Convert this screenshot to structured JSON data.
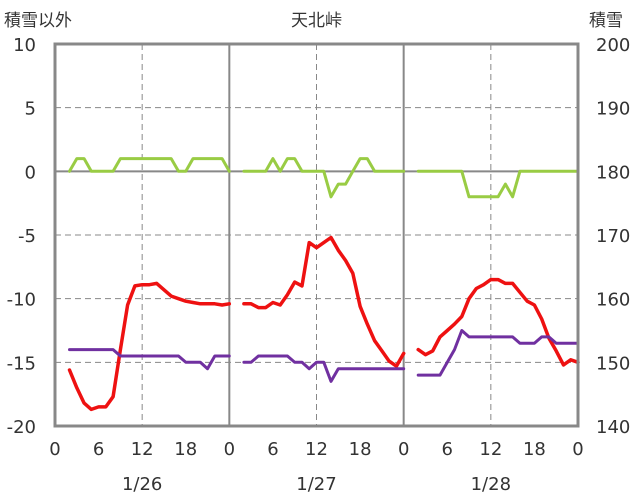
{
  "chart_data": {
    "type": "line",
    "title": "天北峠",
    "left_axis_label": "積雪以外",
    "right_axis_label": "積雪",
    "y_left": {
      "min": -20,
      "max": 10,
      "ticks": [
        10,
        5,
        0,
        -5,
        -10,
        -15,
        -20
      ]
    },
    "y_right": {
      "min": 140,
      "max": 200,
      "ticks": [
        200,
        190,
        180,
        170,
        160,
        150,
        140
      ]
    },
    "x_ticks": [
      "0",
      "6",
      "12",
      "18",
      "0",
      "6",
      "12",
      "18",
      "0",
      "6",
      "12",
      "18",
      "0"
    ],
    "days": [
      "1/26",
      "1/27",
      "1/28"
    ],
    "colors": {
      "red": "#ee1111",
      "green": "#99cc44",
      "purple": "#7030a0",
      "grid": "#888888",
      "zero": "#888888"
    },
    "series": [
      {
        "key": "red",
        "axis": "left",
        "segments": [
          {
            "x": [
              2,
              3,
              4,
              5,
              6,
              7,
              8,
              9,
              10,
              11,
              12,
              13,
              14,
              15,
              16,
              17,
              18,
              19,
              20,
              21,
              22,
              23,
              24
            ],
            "y": [
              -15.6,
              -17,
              -18.2,
              -18.7,
              -18.5,
              -18.5,
              -17.7,
              -14,
              -10.5,
              -9,
              -8.9,
              -8.9,
              -8.8,
              -9.3,
              -9.8,
              -10,
              -10.2,
              -10.3,
              -10.4,
              -10.4,
              -10.4,
              -10.5,
              -10.4
            ]
          },
          {
            "x": [
              26,
              27,
              28,
              29,
              30,
              31,
              32,
              33,
              34,
              35,
              36,
              37,
              38,
              39,
              40,
              41,
              42,
              43,
              44,
              45,
              46,
              47,
              48
            ],
            "y": [
              -10.4,
              -10.4,
              -10.7,
              -10.7,
              -10.3,
              -10.5,
              -9.7,
              -8.7,
              -9,
              -5.6,
              -6,
              -5.6,
              -5.2,
              -6.2,
              -7,
              -8,
              -10.6,
              -12,
              -13.3,
              -14.1,
              -14.9,
              -15.3,
              -14.3
            ]
          },
          {
            "x": [
              50,
              51,
              52,
              53,
              54,
              55,
              56,
              57,
              58,
              59,
              60,
              61,
              62,
              63,
              64,
              65,
              66,
              67,
              68,
              69,
              70,
              71,
              72
            ],
            "y": [
              -14,
              -14.4,
              -14.1,
              -13,
              -12.5,
              -12,
              -11.4,
              -10,
              -9.2,
              -8.9,
              -8.5,
              -8.5,
              -8.8,
              -8.8,
              -9.5,
              -10.2,
              -10.5,
              -11.6,
              -13.1,
              -14.1,
              -15.2,
              -14.8,
              -15
            ]
          }
        ]
      },
      {
        "key": "green",
        "axis": "left",
        "segments": [
          {
            "x": [
              2,
              3,
              4,
              5,
              6,
              7,
              8,
              9,
              10,
              11,
              12,
              13,
              14,
              15,
              16,
              17,
              18,
              19,
              20,
              21,
              22,
              23,
              24
            ],
            "y": [
              0,
              1,
              1,
              0,
              0,
              0,
              0,
              1,
              1,
              1,
              1,
              1,
              1,
              1,
              1,
              0,
              0,
              1,
              1,
              1,
              1,
              1,
              0
            ]
          },
          {
            "x": [
              26,
              27,
              28,
              29,
              30,
              31,
              32,
              33,
              34,
              35,
              36,
              37,
              38,
              39,
              40,
              41,
              42,
              43,
              44,
              45,
              46,
              47,
              48
            ],
            "y": [
              0,
              0,
              0,
              0,
              1,
              0,
              1,
              1,
              0,
              0,
              0,
              0,
              -2,
              -1,
              -1,
              0,
              1,
              1,
              0,
              0,
              0,
              0,
              0
            ]
          },
          {
            "x": [
              50,
              51,
              52,
              53,
              54,
              55,
              56,
              57,
              58,
              59,
              60,
              61,
              62,
              63,
              64,
              65,
              66,
              67,
              68,
              69,
              70,
              71,
              72
            ],
            "y": [
              0,
              0,
              0,
              0,
              0,
              0,
              0,
              -2,
              -2,
              -2,
              -2,
              -2,
              -1,
              -2,
              0,
              0,
              0,
              0,
              0,
              0,
              0,
              0,
              0
            ]
          }
        ]
      },
      {
        "key": "purple",
        "axis": "right",
        "segments": [
          {
            "x": [
              2,
              3,
              4,
              5,
              6,
              7,
              8,
              9,
              10,
              11,
              12,
              13,
              14,
              15,
              16,
              17,
              18,
              19,
              20,
              21,
              22,
              23,
              24
            ],
            "y": [
              152,
              152,
              152,
              152,
              152,
              152,
              152,
              151,
              151,
              151,
              151,
              151,
              151,
              151,
              151,
              151,
              150,
              150,
              150,
              149,
              151,
              151,
              151
            ]
          },
          {
            "x": [
              26,
              27,
              28,
              29,
              30,
              31,
              32,
              33,
              34,
              35,
              36,
              37,
              38,
              39,
              40,
              41,
              42,
              43,
              44,
              45,
              46,
              47,
              48
            ],
            "y": [
              150,
              150,
              151,
              151,
              151,
              151,
              151,
              150,
              150,
              149,
              150,
              150,
              147,
              149,
              149,
              149,
              149,
              149,
              149,
              149,
              149,
              149,
              149
            ]
          },
          {
            "x": [
              50,
              51,
              52,
              53,
              54,
              55,
              56,
              57,
              58,
              59,
              60,
              61,
              62,
              63,
              64,
              65,
              66,
              67,
              68,
              69,
              70,
              71,
              72
            ],
            "y": [
              148,
              148,
              148,
              148,
              150,
              152,
              155,
              154,
              154,
              154,
              154,
              154,
              154,
              154,
              153,
              153,
              153,
              154,
              154,
              153,
              153,
              153,
              153
            ]
          }
        ]
      }
    ]
  }
}
